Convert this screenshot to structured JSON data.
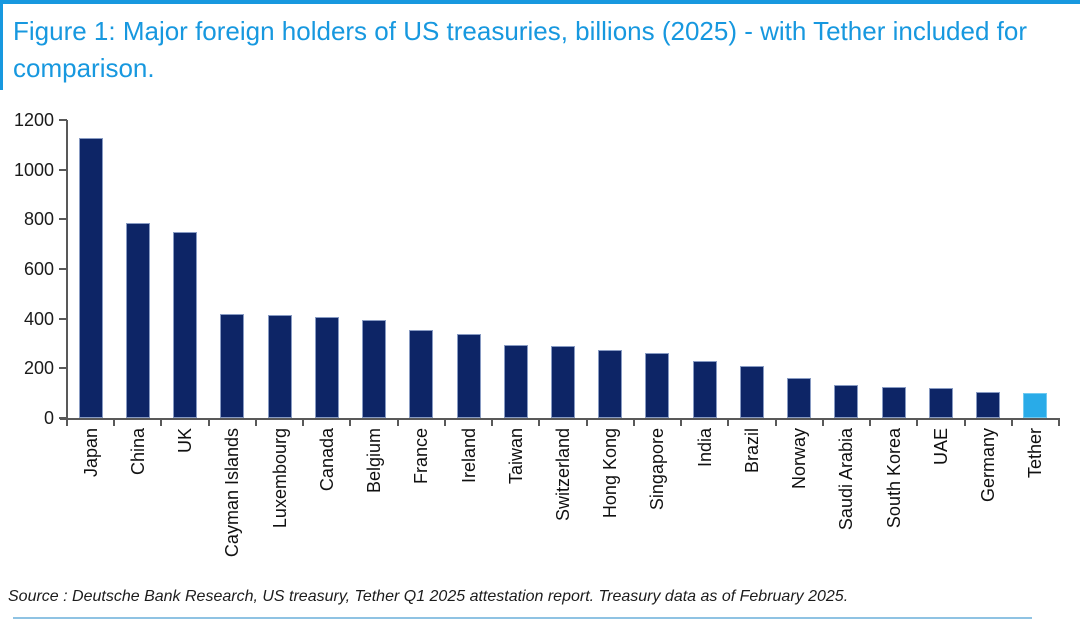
{
  "figure": {
    "title": "Figure 1: Major foreign holders of US treasuries, billions (2025) - with Tether included for comparison.",
    "source": "Source : Deutsche Bank Research, US treasury, Tether Q1 2025 attestation report. Treasury data as of February 2025."
  },
  "colors": {
    "accent_blue": "#1798DF",
    "bar_navy": "#0D2566",
    "bar_highlight_cyan": "#29ABE8",
    "axis_gray": "#595959",
    "divider_light_blue": "#8FC3E3"
  },
  "chart_data": {
    "type": "bar",
    "title": "Major foreign holders of US treasuries, billions (2025) - with Tether included for comparison",
    "categories": [
      "Japan",
      "China",
      "UK",
      "Cayman Islands",
      "Luxembourg",
      "Canada",
      "Belgium",
      "France",
      "Ireland",
      "Taiwan",
      "Switzerland",
      "Hong Kong",
      "Singapore",
      "India",
      "Brazil",
      "Norway",
      "Saudi Arabia",
      "South Korea",
      "UAE",
      "Germany",
      "Tether"
    ],
    "values": [
      1126,
      784,
      750,
      418,
      413,
      406,
      395,
      354,
      339,
      295,
      291,
      274,
      260,
      228,
      208,
      162,
      131,
      125,
      120,
      104,
      102
    ],
    "highlight_category": "Tether",
    "xlabel": "",
    "ylabel": "",
    "ylim": [
      0,
      1200
    ],
    "yticks": [
      0,
      200,
      400,
      600,
      800,
      1000,
      1200
    ],
    "grid": false,
    "legend": false
  }
}
